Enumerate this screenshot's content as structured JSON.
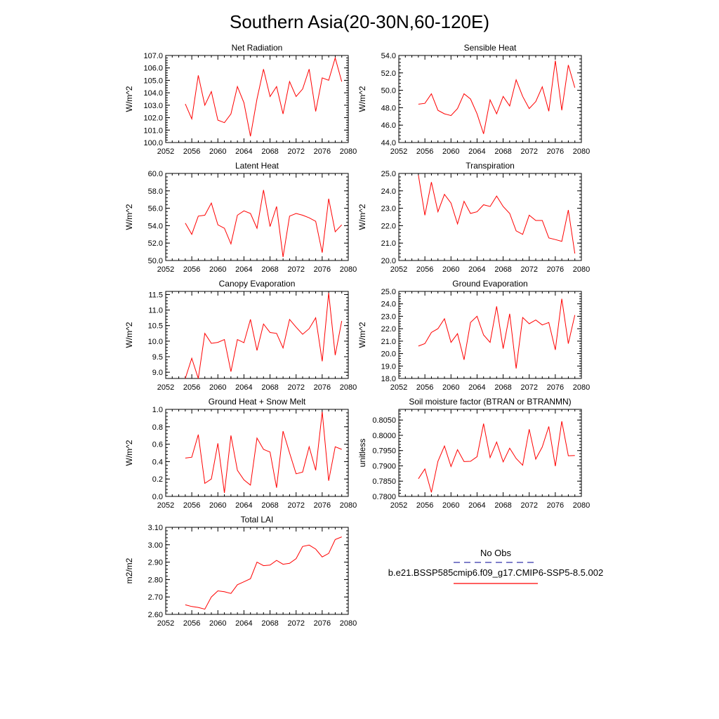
{
  "title": "Southern Asia(20-30N,60-120E)",
  "legend": {
    "obs_label": "No Obs",
    "obs_color": "#3333aa",
    "model_label": "b.e21.BSSP585cmip6.f09_g17.CMIP6-SSP5-8.5.002",
    "model_color": "#ff0000"
  },
  "chart_data": [
    {
      "type": "line",
      "title": "Net Radiation",
      "ylabel": "W/m^2",
      "xlim": [
        2052,
        2080
      ],
      "x_ticks": [
        "2052",
        "2056",
        "2060",
        "2064",
        "2068",
        "2072",
        "2076",
        "2080"
      ],
      "ylim": [
        100.0,
        107.0
      ],
      "y_ticks": [
        "100.0",
        "101.0",
        "102.0",
        "103.0",
        "104.0",
        "105.0",
        "106.0",
        "107.0"
      ],
      "series": [
        {
          "x": [
            2055,
            2056,
            2057,
            2058,
            2059,
            2060,
            2061,
            2062,
            2063,
            2064,
            2065,
            2066,
            2067,
            2068,
            2069,
            2070,
            2071,
            2072,
            2073,
            2074,
            2075,
            2076,
            2077,
            2078,
            2079
          ],
          "values": [
            103.1,
            101.9,
            105.4,
            103.0,
            104.1,
            101.8,
            101.6,
            102.3,
            104.5,
            103.2,
            100.5,
            103.5,
            105.9,
            103.7,
            104.5,
            102.3,
            104.9,
            103.7,
            104.3,
            105.9,
            102.5,
            105.2,
            105.0,
            106.8,
            104.9
          ]
        }
      ]
    },
    {
      "type": "line",
      "title": "Sensible Heat",
      "ylabel": "W/m^2",
      "xlim": [
        2052,
        2080
      ],
      "x_ticks": [
        "2052",
        "2056",
        "2060",
        "2064",
        "2068",
        "2072",
        "2076",
        "2080"
      ],
      "ylim": [
        44.0,
        54.0
      ],
      "y_ticks": [
        "44.0",
        "46.0",
        "48.0",
        "50.0",
        "52.0",
        "54.0"
      ],
      "series": [
        {
          "x": [
            2055,
            2056,
            2057,
            2058,
            2059,
            2060,
            2061,
            2062,
            2063,
            2064,
            2065,
            2066,
            2067,
            2068,
            2069,
            2070,
            2071,
            2072,
            2073,
            2074,
            2075,
            2076,
            2077,
            2078,
            2079
          ],
          "values": [
            48.4,
            48.5,
            49.6,
            47.7,
            47.3,
            47.1,
            47.9,
            49.6,
            49.0,
            47.3,
            45.0,
            48.9,
            47.3,
            49.3,
            48.2,
            51.2,
            49.3,
            47.9,
            48.7,
            50.4,
            47.6,
            53.4,
            47.7,
            52.9,
            50.3
          ]
        }
      ]
    },
    {
      "type": "line",
      "title": "Latent Heat",
      "ylabel": "W/m^2",
      "xlim": [
        2052,
        2080
      ],
      "x_ticks": [
        "2052",
        "2056",
        "2060",
        "2064",
        "2068",
        "2072",
        "2076",
        "2080"
      ],
      "ylim": [
        50.0,
        60.0
      ],
      "y_ticks": [
        "50.0",
        "52.0",
        "54.0",
        "56.0",
        "58.0",
        "60.0"
      ],
      "series": [
        {
          "x": [
            2055,
            2056,
            2057,
            2058,
            2059,
            2060,
            2061,
            2062,
            2063,
            2064,
            2065,
            2066,
            2067,
            2068,
            2069,
            2070,
            2071,
            2072,
            2073,
            2074,
            2075,
            2076,
            2077,
            2078,
            2079
          ],
          "values": [
            54.3,
            53.0,
            55.1,
            55.2,
            56.6,
            54.1,
            53.7,
            51.9,
            55.2,
            55.7,
            55.4,
            53.7,
            58.1,
            53.9,
            56.2,
            50.4,
            55.1,
            55.4,
            55.2,
            54.9,
            54.5,
            50.9,
            57.1,
            53.3,
            54.1
          ]
        }
      ]
    },
    {
      "type": "line",
      "title": "Transpiration",
      "ylabel": "W/m^2",
      "xlim": [
        2052,
        2080
      ],
      "x_ticks": [
        "2052",
        "2056",
        "2060",
        "2064",
        "2068",
        "2072",
        "2076",
        "2080"
      ],
      "ylim": [
        20.0,
        25.0
      ],
      "y_ticks": [
        "20.0",
        "21.0",
        "22.0",
        "23.0",
        "24.0",
        "25.0"
      ],
      "series": [
        {
          "x": [
            2055,
            2056,
            2057,
            2058,
            2059,
            2060,
            2061,
            2062,
            2063,
            2064,
            2065,
            2066,
            2067,
            2068,
            2069,
            2070,
            2071,
            2072,
            2073,
            2074,
            2075,
            2076,
            2077,
            2078,
            2079
          ],
          "values": [
            24.9,
            22.6,
            24.5,
            22.8,
            23.8,
            23.3,
            22.1,
            23.4,
            22.7,
            22.8,
            23.2,
            23.1,
            23.7,
            23.1,
            22.7,
            21.7,
            21.5,
            22.6,
            22.3,
            22.3,
            21.3,
            21.2,
            21.1,
            22.9,
            20.4
          ]
        }
      ]
    },
    {
      "type": "line",
      "title": "Canopy Evaporation",
      "ylabel": "W/m^2",
      "xlim": [
        2052,
        2080
      ],
      "x_ticks": [
        "2052",
        "2056",
        "2060",
        "2064",
        "2068",
        "2072",
        "2076",
        "2080"
      ],
      "ylim": [
        8.8,
        11.6
      ],
      "y_ticks": [
        "9.0",
        "9.5",
        "10.0",
        "10.5",
        "11.0",
        "11.5"
      ],
      "y_tick_values": [
        9.0,
        9.5,
        10.0,
        10.5,
        11.0,
        11.5
      ],
      "series": [
        {
          "x": [
            2055,
            2056,
            2057,
            2058,
            2059,
            2060,
            2061,
            2062,
            2063,
            2064,
            2065,
            2066,
            2067,
            2068,
            2069,
            2070,
            2071,
            2072,
            2073,
            2074,
            2075,
            2076,
            2077,
            2078,
            2079
          ],
          "values": [
            8.8,
            9.45,
            8.8,
            10.25,
            9.93,
            9.96,
            10.05,
            9.02,
            10.05,
            9.95,
            10.7,
            9.7,
            10.55,
            10.28,
            10.25,
            9.78,
            10.7,
            10.45,
            10.22,
            10.4,
            10.75,
            9.35,
            11.55,
            9.55,
            10.65
          ]
        }
      ]
    },
    {
      "type": "line",
      "title": "Ground Evaporation",
      "ylabel": "W/m^2",
      "xlim": [
        2052,
        2080
      ],
      "x_ticks": [
        "2052",
        "2056",
        "2060",
        "2064",
        "2068",
        "2072",
        "2076",
        "2080"
      ],
      "ylim": [
        18.0,
        25.0
      ],
      "y_ticks": [
        "18.0",
        "19.0",
        "20.0",
        "21.0",
        "22.0",
        "23.0",
        "24.0",
        "25.0"
      ],
      "series": [
        {
          "x": [
            2055,
            2056,
            2057,
            2058,
            2059,
            2060,
            2061,
            2062,
            2063,
            2064,
            2065,
            2066,
            2067,
            2068,
            2069,
            2070,
            2071,
            2072,
            2073,
            2074,
            2075,
            2076,
            2077,
            2078,
            2079
          ],
          "values": [
            20.6,
            20.8,
            21.7,
            22.0,
            22.8,
            20.9,
            21.6,
            19.5,
            22.5,
            23.0,
            21.5,
            20.9,
            23.8,
            20.4,
            23.2,
            18.8,
            22.9,
            22.4,
            22.7,
            22.3,
            22.5,
            20.3,
            24.4,
            20.8,
            23.1
          ]
        }
      ]
    },
    {
      "type": "line",
      "title": "Ground Heat + Snow Melt",
      "ylabel": "W/m^2",
      "xlim": [
        2052,
        2080
      ],
      "x_ticks": [
        "2052",
        "2056",
        "2060",
        "2064",
        "2068",
        "2072",
        "2076",
        "2080"
      ],
      "ylim": [
        0.0,
        1.0
      ],
      "y_ticks": [
        "0.0",
        "0.2",
        "0.4",
        "0.6",
        "0.8",
        "1.0"
      ],
      "series": [
        {
          "x": [
            2055,
            2056,
            2057,
            2058,
            2059,
            2060,
            2061,
            2062,
            2063,
            2064,
            2065,
            2066,
            2067,
            2068,
            2069,
            2070,
            2071,
            2072,
            2073,
            2074,
            2075,
            2076,
            2077,
            2078,
            2079
          ],
          "values": [
            0.44,
            0.45,
            0.71,
            0.15,
            0.2,
            0.61,
            0.04,
            0.7,
            0.3,
            0.19,
            0.13,
            0.67,
            0.54,
            0.51,
            0.1,
            0.75,
            0.5,
            0.26,
            0.28,
            0.57,
            0.3,
            0.97,
            0.18,
            0.57,
            0.54
          ]
        }
      ]
    },
    {
      "type": "line",
      "title": "Soil moisture factor (BTRAN or BTRANMN)",
      "ylabel": "unitless",
      "xlim": [
        2052,
        2080
      ],
      "x_ticks": [
        "2052",
        "2056",
        "2060",
        "2064",
        "2068",
        "2072",
        "2076",
        "2080"
      ],
      "ylim": [
        0.78,
        0.8085
      ],
      "y_ticks": [
        "0.7800",
        "0.7850",
        "0.7900",
        "0.7950",
        "0.8000",
        "0.8050"
      ],
      "y_tick_values": [
        0.78,
        0.785,
        0.79,
        0.795,
        0.8,
        0.805
      ],
      "series": [
        {
          "x": [
            2055,
            2056,
            2057,
            2058,
            2059,
            2060,
            2061,
            2062,
            2063,
            2064,
            2065,
            2066,
            2067,
            2068,
            2069,
            2070,
            2071,
            2072,
            2073,
            2074,
            2075,
            2076,
            2077,
            2078,
            2079
          ],
          "values": [
            0.7858,
            0.789,
            0.7813,
            0.7915,
            0.7965,
            0.7898,
            0.7953,
            0.7914,
            0.7915,
            0.793,
            0.8038,
            0.7927,
            0.7978,
            0.7913,
            0.7958,
            0.7924,
            0.7902,
            0.802,
            0.7922,
            0.7962,
            0.8029,
            0.7899,
            0.8046,
            0.7933,
            0.7934
          ]
        }
      ]
    },
    {
      "type": "line",
      "title": "Total LAI",
      "ylabel": "m2/m2",
      "xlim": [
        2052,
        2080
      ],
      "x_ticks": [
        "2052",
        "2056",
        "2060",
        "2064",
        "2068",
        "2072",
        "2076",
        "2080"
      ],
      "ylim": [
        2.6,
        3.1
      ],
      "y_ticks": [
        "2.60",
        "2.70",
        "2.80",
        "2.90",
        "3.00",
        "3.10"
      ],
      "series": [
        {
          "x": [
            2055,
            2056,
            2057,
            2058,
            2059,
            2060,
            2061,
            2062,
            2063,
            2064,
            2065,
            2066,
            2067,
            2068,
            2069,
            2070,
            2071,
            2072,
            2073,
            2074,
            2075,
            2076,
            2077,
            2078,
            2079
          ],
          "values": [
            2.655,
            2.645,
            2.64,
            2.63,
            2.7,
            2.735,
            2.73,
            2.72,
            2.77,
            2.787,
            2.805,
            2.9,
            2.88,
            2.883,
            2.91,
            2.888,
            2.893,
            2.92,
            2.99,
            2.998,
            2.975,
            2.93,
            2.95,
            3.03,
            3.045
          ]
        }
      ]
    }
  ]
}
